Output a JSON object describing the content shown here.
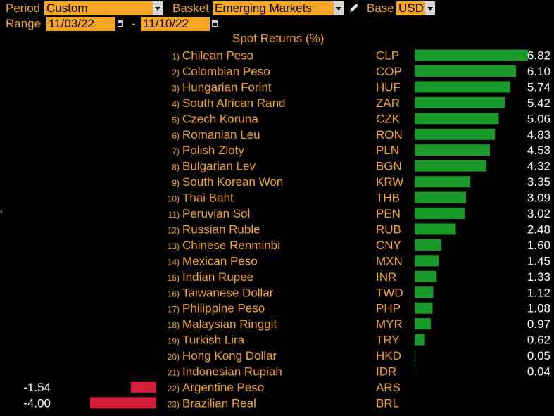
{
  "header": {
    "period_label": "Period",
    "period_value": "Custom",
    "basket_label": "Basket",
    "basket_value": "Emerging Markets",
    "base_label": "Base",
    "base_value": "USD",
    "range_label": "Range",
    "range_start": "11/03/22",
    "range_sep": "-",
    "range_end": "11/10/22"
  },
  "colors": {
    "positive_bar": "#1a9a2a",
    "negative_bar": "#d11f3b",
    "text": "#f5a623",
    "values": "#ffffff"
  },
  "chart_data": {
    "type": "bar",
    "title": "Spot Returns (%)",
    "ranks": [
      "1)",
      "2)",
      "3)",
      "4)",
      "5)",
      "6)",
      "7)",
      "8)",
      "9)",
      "10)",
      "11)",
      "12)",
      "13)",
      "14)",
      "15)",
      "16)",
      "17)",
      "18)",
      "19)",
      "20)",
      "21)",
      "22)",
      "23)"
    ],
    "categories": [
      "Chilean Peso",
      "Colombian Peso",
      "Hungarian Forint",
      "South African Rand",
      "Czech Koruna",
      "Romanian Leu",
      "Polish Zloty",
      "Bulgarian Lev",
      "South Korean Won",
      "Thai Baht",
      "Peruvian Sol",
      "Russian Ruble",
      "Chinese Renminbi",
      "Mexican Peso",
      "Indian Rupee",
      "Taiwanese Dollar",
      "Philippine Peso",
      "Malaysian Ringgit",
      "Turkish Lira",
      "Hong Kong Dollar",
      "Indonesian Rupiah",
      "Argentine Peso",
      "Brazilian Real"
    ],
    "codes": [
      "CLP",
      "COP",
      "HUF",
      "ZAR",
      "CZK",
      "RON",
      "PLN",
      "BGN",
      "KRW",
      "THB",
      "PEN",
      "RUB",
      "CNY",
      "MXN",
      "INR",
      "TWD",
      "PHP",
      "MYR",
      "TRY",
      "HKD",
      "IDR",
      "ARS",
      "BRL"
    ],
    "values": [
      6.82,
      6.1,
      5.74,
      5.42,
      5.06,
      4.83,
      4.53,
      4.32,
      3.35,
      3.09,
      3.02,
      2.48,
      1.6,
      1.45,
      1.33,
      1.12,
      1.08,
      0.97,
      0.62,
      0.05,
      0.04,
      -1.54,
      -4.0
    ],
    "labels": [
      "6.82",
      "6.10",
      "5.74",
      "5.42",
      "5.06",
      "4.83",
      "4.53",
      "4.32",
      "3.35",
      "3.09",
      "3.02",
      "2.48",
      "1.60",
      "1.45",
      "1.33",
      "1.12",
      "1.08",
      "0.97",
      "0.62",
      "0.05",
      "0.04",
      "-1.54",
      "-4.00"
    ]
  }
}
